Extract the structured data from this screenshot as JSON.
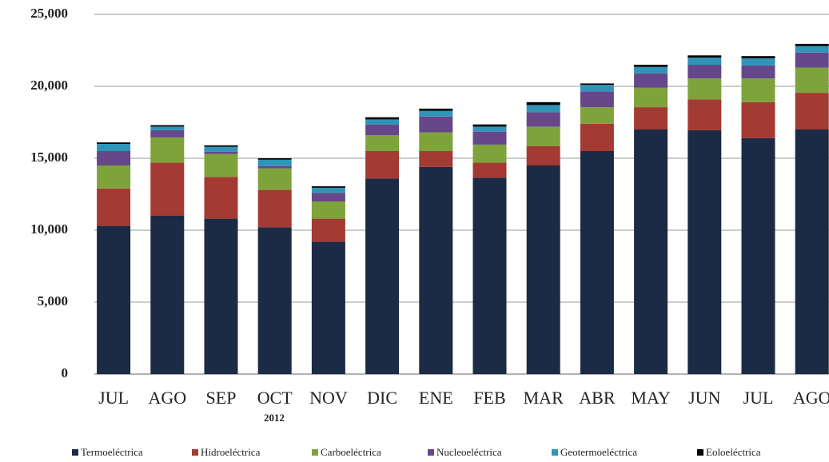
{
  "chart_data": {
    "type": "stacked_bar",
    "categories": [
      "JUL",
      "AGO",
      "SEP",
      "OCT",
      "NOV",
      "DIC",
      "ENE",
      "FEB",
      "MAR",
      "ABR",
      "MAY",
      "JUN",
      "JUL",
      "AGO"
    ],
    "annotation": "2012",
    "series": [
      {
        "name": "Termoeléctrica",
        "color": "#1b2a45",
        "values": [
          10300,
          11000,
          10800,
          10200,
          9200,
          13600,
          14400,
          13650,
          14500,
          15500,
          17000,
          16950,
          16400,
          17000
        ]
      },
      {
        "name": "Hidroeléctrica",
        "color": "#a33a33",
        "values": [
          2600,
          3700,
          2900,
          2600,
          1600,
          1900,
          1100,
          1050,
          1350,
          1900,
          1550,
          2150,
          2500,
          2550
        ]
      },
      {
        "name": "Carboeléctrica",
        "color": "#7ea33a",
        "values": [
          1600,
          1750,
          1600,
          1500,
          1200,
          1100,
          1300,
          1250,
          1350,
          1150,
          1350,
          1450,
          1650,
          1750
        ]
      },
      {
        "name": "Nucleoeléctrica",
        "color": "#66478a",
        "values": [
          1000,
          500,
          150,
          150,
          600,
          750,
          1100,
          900,
          1000,
          1100,
          1000,
          950,
          900,
          1050
        ]
      },
      {
        "name": "Geotermoeléctrica",
        "color": "#2f94b8",
        "values": [
          500,
          250,
          350,
          450,
          350,
          350,
          400,
          350,
          500,
          450,
          450,
          500,
          500,
          450
        ]
      },
      {
        "name": "Eoloeléctrica",
        "color": "#000000",
        "values": [
          100,
          100,
          100,
          100,
          100,
          150,
          150,
          150,
          200,
          100,
          150,
          150,
          150,
          150
        ]
      }
    ],
    "ylim": [
      0,
      25000
    ],
    "yticks": [
      0,
      {
        "value": 5000,
        "label": "5,000"
      },
      {
        "value": 10000,
        "label": "10,000"
      },
      {
        "value": 15000,
        "label": "15,000"
      },
      {
        "value": 20000,
        "label": "20,000"
      },
      {
        "value": 25000,
        "label": "25,000"
      }
    ],
    "grid": true,
    "legend": "bottom"
  }
}
